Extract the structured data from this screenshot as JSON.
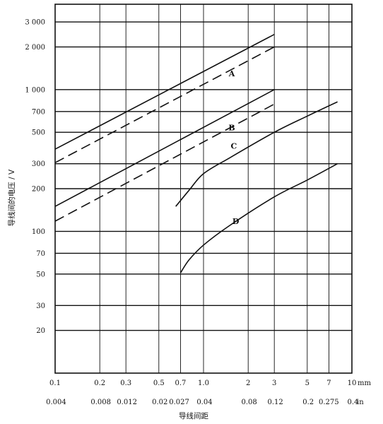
{
  "chart_data": {
    "type": "line",
    "ylabel": "导线间的电压 / V",
    "xlabel": "导线间距",
    "x_scale": "log",
    "y_scale": "log",
    "xlim_mm": [
      0.1,
      10
    ],
    "ylim_V": [
      10,
      4000
    ],
    "x_unit_mm": "mm",
    "x_unit_in": "in",
    "y_ticks": [
      {
        "value": 3000,
        "label": "3 000"
      },
      {
        "value": 2000,
        "label": "2 000"
      },
      {
        "value": 1000,
        "label": "1 000"
      },
      {
        "value": 700,
        "label": "700"
      },
      {
        "value": 500,
        "label": "500"
      },
      {
        "value": 300,
        "label": "300"
      },
      {
        "value": 200,
        "label": "200"
      },
      {
        "value": 100,
        "label": "100"
      },
      {
        "value": 70,
        "label": "70"
      },
      {
        "value": 50,
        "label": "50"
      },
      {
        "value": 30,
        "label": "30"
      },
      {
        "value": 20,
        "label": "20"
      }
    ],
    "x_ticks_mm": [
      {
        "value": 0.1,
        "label": "0.1"
      },
      {
        "value": 0.2,
        "label": "0.2"
      },
      {
        "value": 0.3,
        "label": "0.3"
      },
      {
        "value": 0.5,
        "label": "0.5"
      },
      {
        "value": 0.7,
        "label": "0.7"
      },
      {
        "value": 1.0,
        "label": "1.0"
      },
      {
        "value": 2,
        "label": "2"
      },
      {
        "value": 3,
        "label": "3"
      },
      {
        "value": 5,
        "label": "5"
      },
      {
        "value": 7,
        "label": "7"
      },
      {
        "value": 10,
        "label": "10"
      }
    ],
    "x_ticks_in": [
      {
        "value": 0.004,
        "label": "0.004"
      },
      {
        "value": 0.008,
        "label": "0.008"
      },
      {
        "value": 0.012,
        "label": "0.012"
      },
      {
        "value": 0.02,
        "label": "0.02"
      },
      {
        "value": 0.027,
        "label": "0.027"
      },
      {
        "value": 0.04,
        "label": "0.04"
      },
      {
        "value": 0.08,
        "label": "0.08"
      },
      {
        "value": 0.12,
        "label": "0.12"
      },
      {
        "value": 0.2,
        "label": "0.2"
      },
      {
        "value": 0.275,
        "label": "0.275"
      },
      {
        "value": 0.4,
        "label": "0.4"
      }
    ],
    "series": [
      {
        "name": "A",
        "style": "solid",
        "x": [
          0.1,
          3
        ],
        "y": [
          380,
          2450
        ]
      },
      {
        "name": "A",
        "style": "dashed",
        "x": [
          0.1,
          3
        ],
        "y": [
          305,
          2000
        ]
      },
      {
        "name": "B",
        "style": "solid",
        "x": [
          0.1,
          3
        ],
        "y": [
          150,
          1000
        ]
      },
      {
        "name": "B",
        "style": "dashed",
        "x": [
          0.1,
          3
        ],
        "y": [
          118,
          790
        ]
      },
      {
        "name": "C",
        "style": "solid",
        "x": [
          0.65,
          0.8,
          1.0,
          1.5,
          3,
          5,
          8
        ],
        "y": [
          150,
          195,
          255,
          330,
          500,
          650,
          820
        ]
      },
      {
        "name": "D",
        "style": "solid",
        "x": [
          0.7,
          0.8,
          1.0,
          1.5,
          3,
          5,
          8
        ],
        "y": [
          51,
          63,
          80,
          110,
          175,
          230,
          300
        ]
      }
    ],
    "annotations": [
      {
        "text": "A",
        "x": 1.55,
        "y": 1300
      },
      {
        "text": "B",
        "x": 1.55,
        "y": 540
      },
      {
        "text": "C",
        "x": 1.6,
        "y": 400
      },
      {
        "text": "D",
        "x": 1.65,
        "y": 118
      }
    ]
  }
}
